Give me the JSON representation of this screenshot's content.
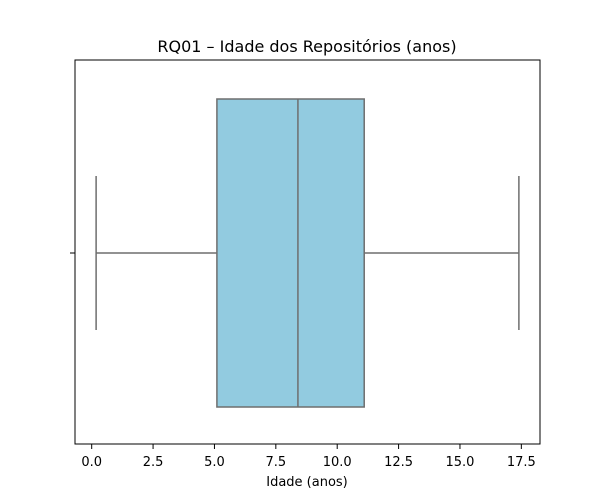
{
  "chart_data": {
    "type": "box",
    "orientation": "horizontal",
    "title": "RQ01 – Idade dos Repositórios (anos)",
    "xlabel": "Idade (anos)",
    "ylabel": "",
    "xlim": [
      -0.68,
      18.26
    ],
    "xticks": [
      0.0,
      2.5,
      5.0,
      7.5,
      10.0,
      12.5,
      15.0,
      17.5
    ],
    "xtick_labels": [
      "0.0",
      "2.5",
      "5.0",
      "7.5",
      "10.0",
      "12.5",
      "15.0",
      "17.5"
    ],
    "grid": false,
    "stats": {
      "min": 0.18,
      "q1": 5.1,
      "median": 8.4,
      "q3": 11.1,
      "max": 17.4
    },
    "colors": {
      "box_fill": "#92cbe0",
      "lines": "#6e6e6e"
    }
  }
}
